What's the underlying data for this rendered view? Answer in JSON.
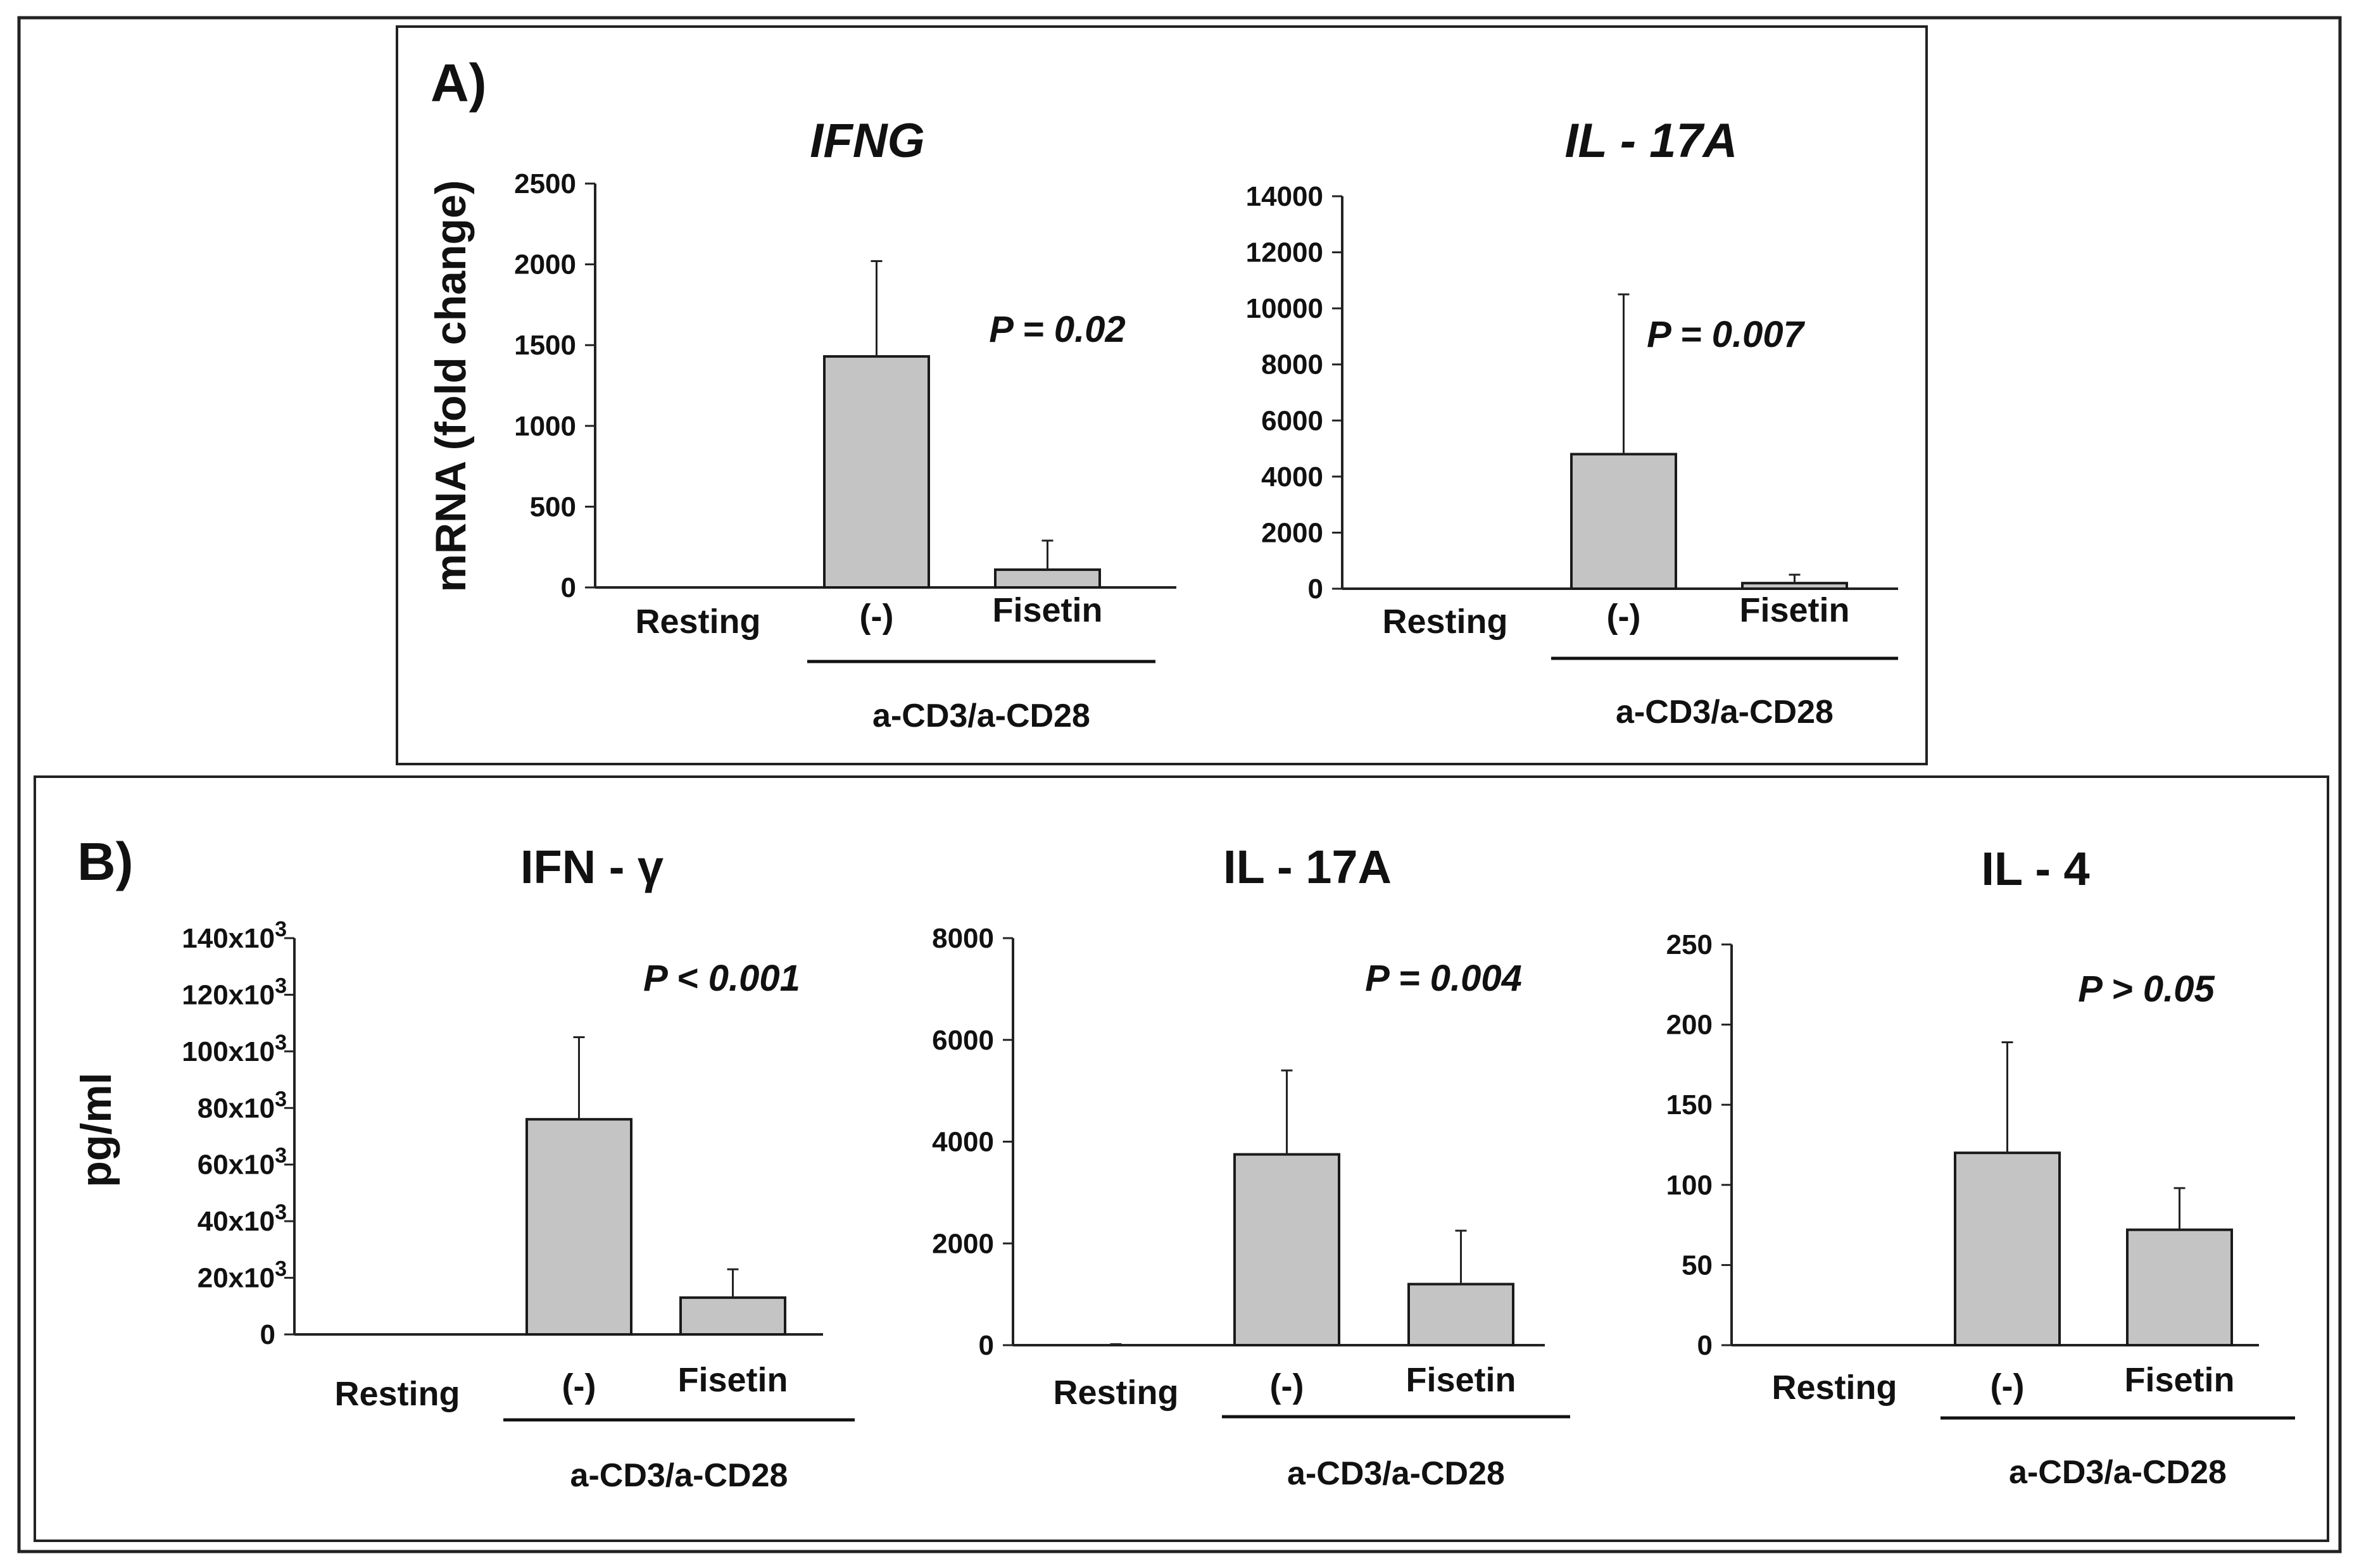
{
  "panels": {
    "A": {
      "label": "A)",
      "ylabel": "mRNA (fold change)"
    },
    "B": {
      "label": "B)",
      "ylabel": "pg/ml"
    }
  },
  "chart_data": [
    {
      "type": "bar",
      "panel": "A",
      "title": "IFNG",
      "title_style": "italic",
      "categories": [
        "Resting",
        "(-)",
        "Fisetin"
      ],
      "group_label": "a-CD3/a-CD28",
      "values": [
        0,
        1430,
        110
      ],
      "errors": [
        0,
        590,
        180
      ],
      "ylim": [
        0,
        2500
      ],
      "yticks": [
        0,
        500,
        1000,
        1500,
        2000,
        2500
      ],
      "ytick_labels": [
        "0",
        "500",
        "1000",
        "1500",
        "2000",
        "2500"
      ],
      "annotation": "P = 0.02"
    },
    {
      "type": "bar",
      "panel": "A",
      "title": "IL - 17A",
      "title_style": "italic",
      "categories": [
        "Resting",
        "(-)",
        "Fisetin"
      ],
      "group_label": "a-CD3/a-CD28",
      "values": [
        0,
        4800,
        200
      ],
      "errors": [
        0,
        5700,
        300
      ],
      "ylim": [
        0,
        14000
      ],
      "yticks": [
        0,
        2000,
        4000,
        6000,
        8000,
        10000,
        12000,
        14000
      ],
      "ytick_labels": [
        "0",
        "2000",
        "4000",
        "6000",
        "8000",
        "10000",
        "12000",
        "14000"
      ],
      "annotation": "P = 0.007"
    },
    {
      "type": "bar",
      "panel": "B",
      "title": "IFN - γ",
      "title_style": "normal",
      "categories": [
        "Resting",
        "(-)",
        "Fisetin"
      ],
      "group_label": "a-CD3/a-CD28",
      "values": [
        0,
        76000,
        13000
      ],
      "errors": [
        0,
        29000,
        10000
      ],
      "ylim": [
        0,
        140000
      ],
      "yticks": [
        0,
        20000,
        40000,
        60000,
        80000,
        100000,
        120000,
        140000
      ],
      "ytick_labels": [
        "0",
        "20x10",
        "40x10",
        "60x10",
        "80x10",
        "100x10",
        "120x10",
        "140x10"
      ],
      "ytick_sup": [
        "",
        "3",
        "3",
        "3",
        "3",
        "3",
        "3",
        "3"
      ],
      "annotation": "P < 0.001"
    },
    {
      "type": "bar",
      "panel": "B",
      "title": "IL - 17A",
      "title_style": "normal",
      "categories": [
        "Resting",
        "(-)",
        "Fisetin"
      ],
      "group_label": "a-CD3/a-CD28",
      "values": [
        0,
        3750,
        1200
      ],
      "errors": [
        20,
        1650,
        1050
      ],
      "ylim": [
        0,
        8000
      ],
      "yticks": [
        0,
        2000,
        4000,
        6000,
        8000
      ],
      "ytick_labels": [
        "0",
        "2000",
        "4000",
        "6000",
        "8000"
      ],
      "annotation": "P = 0.004"
    },
    {
      "type": "bar",
      "panel": "B",
      "title": "IL - 4",
      "title_style": "normal",
      "categories": [
        "Resting",
        "(-)",
        "Fisetin"
      ],
      "group_label": "a-CD3/a-CD28",
      "values": [
        0,
        120,
        72
      ],
      "errors": [
        0,
        69,
        26
      ],
      "ylim": [
        0,
        250
      ],
      "yticks": [
        0,
        50,
        100,
        150,
        200,
        250
      ],
      "ytick_labels": [
        "0",
        "50",
        "100",
        "150",
        "200",
        "250"
      ],
      "annotation": "P > 0.05"
    }
  ]
}
